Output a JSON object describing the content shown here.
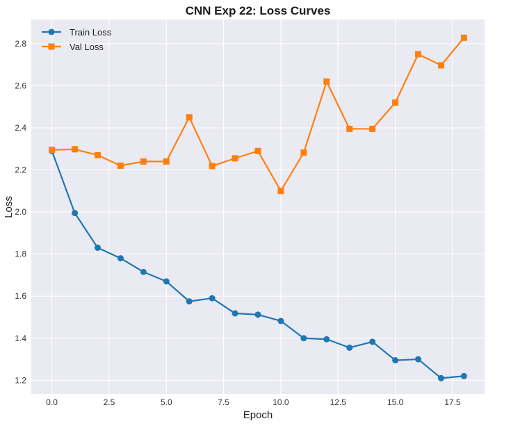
{
  "chart_data": {
    "type": "line",
    "title": "CNN Exp 22: Loss Curves",
    "xlabel": "Epoch",
    "ylabel": "Loss",
    "xlim": [
      -0.9,
      18.9
    ],
    "ylim": [
      1.135,
      2.915
    ],
    "xticks": [
      0.0,
      2.5,
      5.0,
      7.5,
      10.0,
      12.5,
      15.0,
      17.5
    ],
    "xtick_labels": [
      "0.0",
      "2.5",
      "5.0",
      "7.5",
      "10.0",
      "12.5",
      "15.0",
      "17.5"
    ],
    "yticks": [
      1.2,
      1.4,
      1.6,
      1.8,
      2.0,
      2.2,
      2.4,
      2.6,
      2.8
    ],
    "ytick_labels": [
      "1.2",
      "1.4",
      "1.6",
      "1.8",
      "2.0",
      "2.2",
      "2.4",
      "2.6",
      "2.8"
    ],
    "grid": true,
    "legend_position": "top-left",
    "x": [
      0,
      1,
      2,
      3,
      4,
      5,
      6,
      7,
      8,
      9,
      10,
      11,
      12,
      13,
      14,
      15,
      16,
      17,
      18
    ],
    "series": [
      {
        "name": "Train Loss",
        "color": "#1f77b4",
        "marker": "circle",
        "values": [
          2.29,
          1.995,
          1.83,
          1.78,
          1.715,
          1.67,
          1.575,
          1.59,
          1.518,
          1.512,
          1.482,
          1.4,
          1.395,
          1.355,
          1.383,
          1.295,
          1.3,
          1.21,
          1.22
        ]
      },
      {
        "name": "Val Loss",
        "color": "#ff7f0e",
        "marker": "square",
        "values": [
          2.295,
          2.298,
          2.27,
          2.22,
          2.24,
          2.24,
          2.45,
          2.218,
          2.255,
          2.29,
          2.1,
          2.282,
          2.62,
          2.395,
          2.395,
          2.52,
          2.75,
          2.697,
          2.828
        ]
      }
    ]
  }
}
